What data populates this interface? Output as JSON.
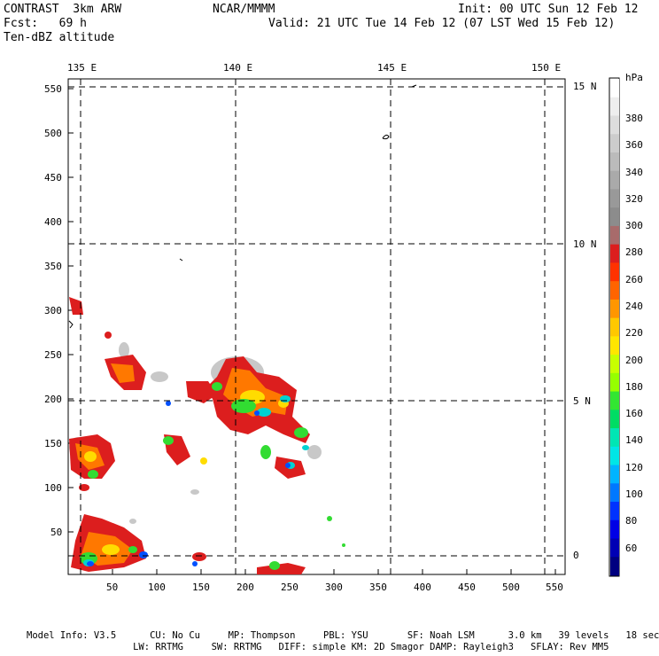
{
  "header": {
    "title": "CONTRAST  3km ARW",
    "source": "NCAR/MMMM",
    "init": "Init: 00 UTC Sun 12 Feb 12",
    "fcst": "Fcst:   69 h",
    "valid": "Valid: 21 UTC Tue 14 Feb 12 (07 LST Wed 15 Feb 12)",
    "field": "Ten-dBZ altitude"
  },
  "lon_labels": [
    "135 E",
    "140 E",
    "145 E",
    "150 E"
  ],
  "lat_labels": [
    "15 N",
    "10 N",
    "5 N",
    "0"
  ],
  "y_ticks": [
    "550",
    "500",
    "450",
    "400",
    "350",
    "300",
    "250",
    "200",
    "150",
    "100",
    "50"
  ],
  "x_ticks": [
    "50",
    "100",
    "150",
    "200",
    "250",
    "300",
    "350",
    "400",
    "450",
    "500",
    "550"
  ],
  "colorbar": {
    "unit": "hPa",
    "labels": [
      "380",
      "360",
      "340",
      "320",
      "300",
      "280",
      "260",
      "240",
      "220",
      "200",
      "180",
      "160",
      "140",
      "120",
      "100",
      "80",
      "60"
    ],
    "colors": [
      "#ffffff",
      "#eeeeee",
      "#dddddd",
      "#cccccc",
      "#bbbbbb",
      "#aaaaaa",
      "#999999",
      "#8c8c8c",
      "#a86b6b",
      "#dc1e1e",
      "#ff3200",
      "#ff6400",
      "#ff9600",
      "#ffc800",
      "#ffe600",
      "#c8ff00",
      "#96ff00",
      "#32e632",
      "#00dc64",
      "#00e6b4",
      "#00e6e6",
      "#00b4ff",
      "#0078ff",
      "#0032ff",
      "#0000e6",
      "#0000b4",
      "#000080"
    ]
  },
  "footer": {
    "line1": "Model Info: V3.5      CU: No Cu     MP: Thompson     PBL: YSU       SF: Noah LSM      3.0 km   39 levels   18 sec",
    "line2": "                   LW: RRTMG     SW: RRTMG   DIFF: simple KM: 2D Smagor DAMP: Rayleigh3   SFLAY: Rev MM5"
  }
}
